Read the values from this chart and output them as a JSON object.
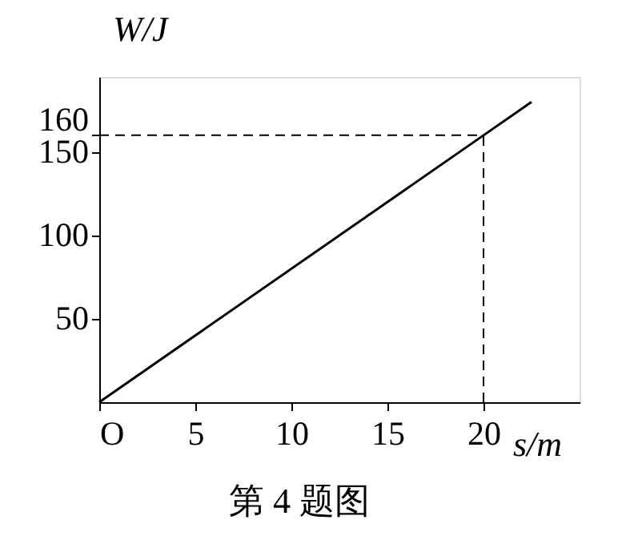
{
  "chart_data": {
    "type": "line",
    "xlabel": "s/m",
    "ylabel": "W/J",
    "x": [
      0,
      20,
      22.5
    ],
    "values": [
      0,
      160,
      180
    ],
    "color": "#000000",
    "xlim": [
      0,
      25
    ],
    "ylim": [
      0,
      195
    ],
    "xticks": [
      {
        "value": 0,
        "label": "O"
      },
      5,
      10,
      15,
      20
    ],
    "yticks": [
      50,
      100,
      150,
      160
    ],
    "ref_lines": [
      {
        "axis": "x",
        "value": 20,
        "line_style": "dashed"
      },
      {
        "axis": "y",
        "value": 160,
        "line_style": "dashed"
      }
    ],
    "annotations": [
      "第 4 题图"
    ],
    "grid": false,
    "marker": "none",
    "line_style": "solid"
  }
}
